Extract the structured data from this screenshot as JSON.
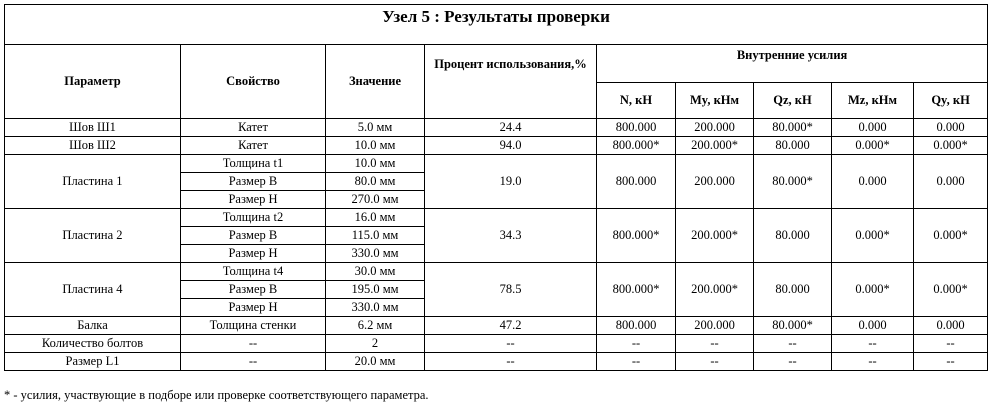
{
  "title": "Узел 5 : Результаты проверки",
  "headers": {
    "param": "Параметр",
    "property": "Свойство",
    "value": "Значение",
    "percent": "Процент использования,%",
    "forces_group": "Внутренние усилия",
    "forces": [
      "N, кН",
      "My, кНм",
      "Qz, кН",
      "Mz, кНм",
      "Qy, кН"
    ]
  },
  "rows": [
    {
      "param": "Шов Ш1",
      "props": [
        [
          "Катет",
          "5.0 мм"
        ]
      ],
      "percent": "24.4",
      "forces": [
        "800.000",
        "200.000",
        "80.000*",
        "0.000",
        "0.000"
      ]
    },
    {
      "param": "Шов Ш2",
      "props": [
        [
          "Катет",
          "10.0 мм"
        ]
      ],
      "percent": "94.0",
      "forces": [
        "800.000*",
        "200.000*",
        "80.000",
        "0.000*",
        "0.000*"
      ]
    },
    {
      "param": "Пластина 1",
      "props": [
        [
          "Толщина t1",
          "10.0 мм"
        ],
        [
          "Размер B",
          "80.0 мм"
        ],
        [
          "Размер H",
          "270.0 мм"
        ]
      ],
      "percent": "19.0",
      "forces": [
        "800.000",
        "200.000",
        "80.000*",
        "0.000",
        "0.000"
      ]
    },
    {
      "param": "Пластина 2",
      "props": [
        [
          "Толщина t2",
          "16.0 мм"
        ],
        [
          "Размер B",
          "115.0 мм"
        ],
        [
          "Размер H",
          "330.0 мм"
        ]
      ],
      "percent": "34.3",
      "forces": [
        "800.000*",
        "200.000*",
        "80.000",
        "0.000*",
        "0.000*"
      ]
    },
    {
      "param": "Пластина 4",
      "props": [
        [
          "Толщина t4",
          "30.0 мм"
        ],
        [
          "Размер B",
          "195.0 мм"
        ],
        [
          "Размер H",
          "330.0 мм"
        ]
      ],
      "percent": "78.5",
      "forces": [
        "800.000*",
        "200.000*",
        "80.000",
        "0.000*",
        "0.000*"
      ]
    },
    {
      "param": "Балка",
      "props": [
        [
          "Толщина стенки",
          "6.2 мм"
        ]
      ],
      "percent": "47.2",
      "forces": [
        "800.000",
        "200.000",
        "80.000*",
        "0.000",
        "0.000"
      ]
    },
    {
      "param": "Количество болтов",
      "props": [
        [
          "--",
          "2"
        ]
      ],
      "percent": "--",
      "forces": [
        "--",
        "--",
        "--",
        "--",
        "--"
      ]
    },
    {
      "param": "Размер L1",
      "props": [
        [
          "--",
          "20.0 мм"
        ]
      ],
      "percent": "--",
      "forces": [
        "--",
        "--",
        "--",
        "--",
        "--"
      ]
    }
  ],
  "footnote": "* - усилия, участвующие в подборе или проверке соответствующего параметра."
}
